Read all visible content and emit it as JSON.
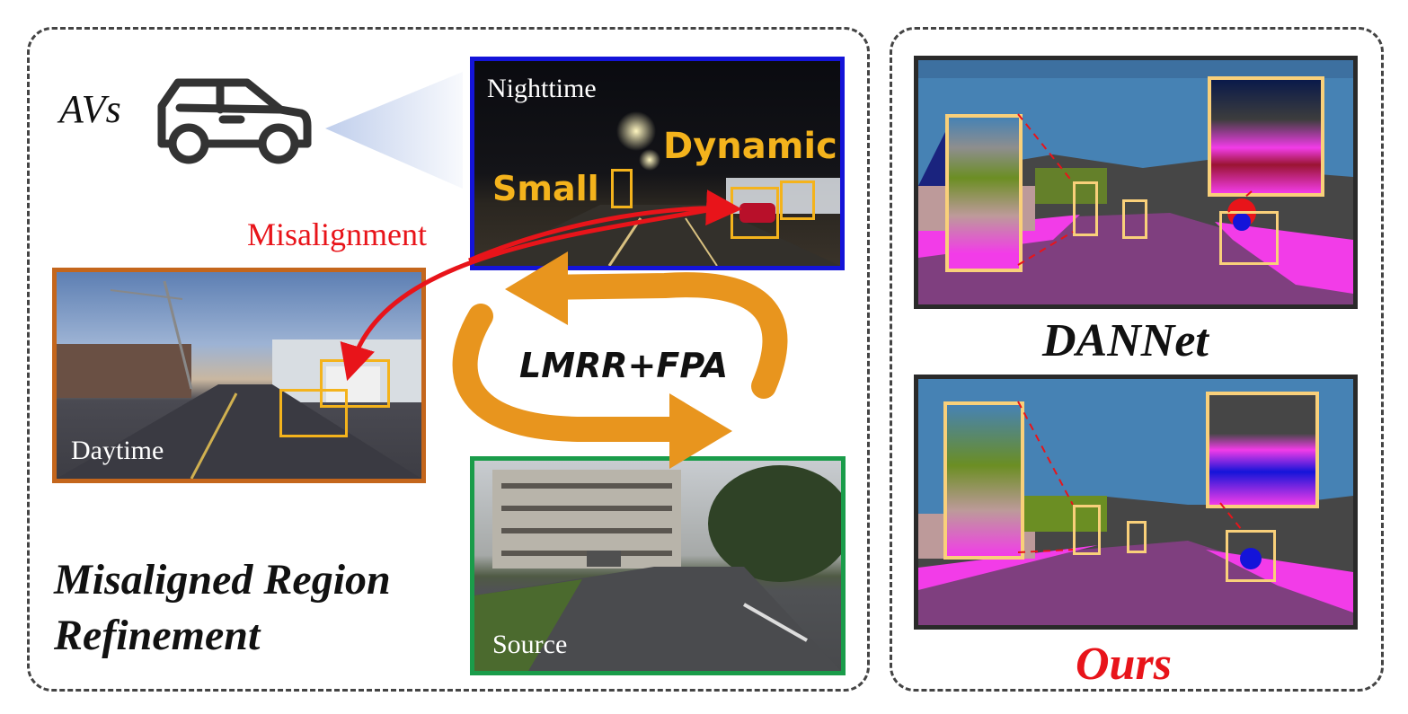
{
  "left_panel": {
    "vehicle_label": "AVs",
    "nighttime_label": "Nighttime",
    "daytime_label": "Daytime",
    "source_label": "Source",
    "small_label": "Small",
    "dynamic_label": "Dynamic",
    "misalignment_label": "Misalignment",
    "method_label": "LMRR+FPA",
    "title_line1": "Misaligned Region",
    "title_line2": "Refinement"
  },
  "right_panel": {
    "baseline_label": "DANNet",
    "ours_label": "Ours"
  },
  "colors": {
    "night_border": "#1414d9",
    "day_border": "#c4661c",
    "source_border": "#1a9c4a",
    "highlight_box": "#f4b31c",
    "arrow_orange": "#e8951e",
    "misalign_red": "#e8141a",
    "seg_sky": "#4682b4",
    "seg_road": "#7f3f7f",
    "seg_sidewalk": "#f23ce8",
    "seg_building": "#464646",
    "seg_vegetation": "#6b8e23"
  }
}
